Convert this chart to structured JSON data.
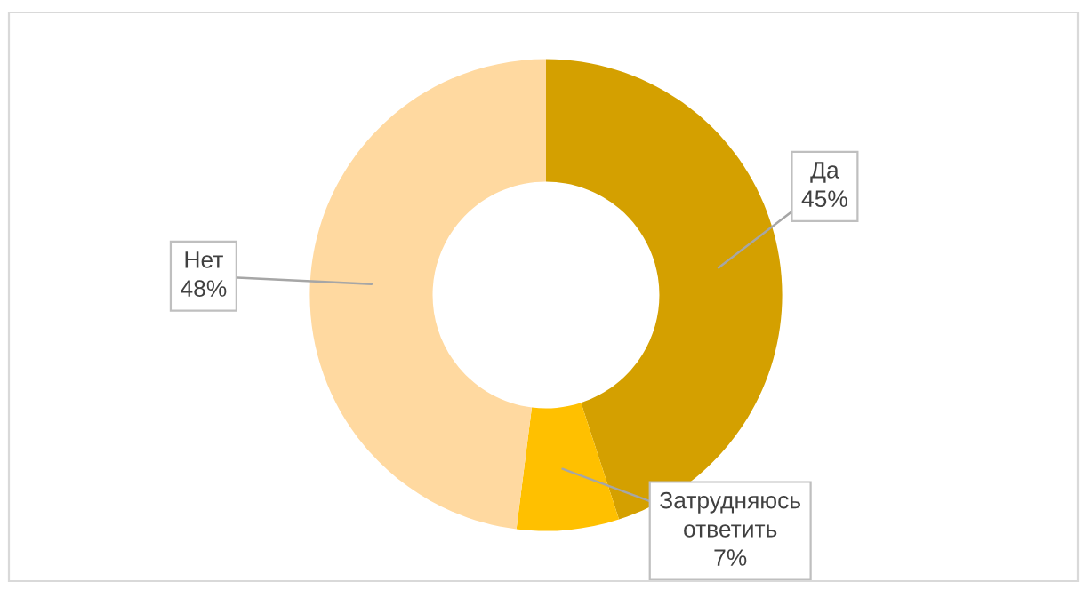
{
  "chart_data": {
    "type": "donut",
    "categories": [
      "Да",
      "Затрудняюсь ответить",
      "Нет"
    ],
    "values": [
      45,
      7,
      48
    ],
    "colors": [
      "#d4a000",
      "#ffc000",
      "#ffd9a0"
    ],
    "value_labels": [
      "45%",
      "7%",
      "48%"
    ],
    "legend": false
  }
}
